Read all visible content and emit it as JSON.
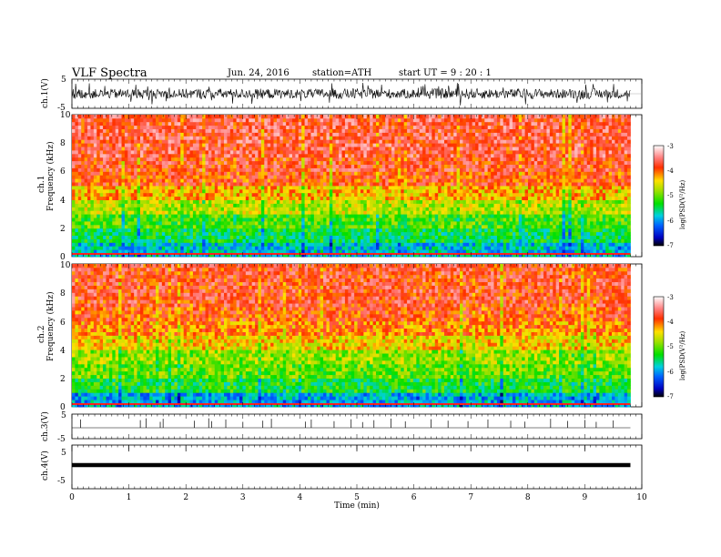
{
  "header": {
    "title": "VLF Spectra",
    "date": "Jun. 24, 2016",
    "station": "station=ATH",
    "start": "start  UT =   9  : 20 : 1"
  },
  "colors": {
    "spectrogram_low": "#0000cc",
    "spectrogram_high": "#ff2020",
    "colorbar_top": "#ffffff",
    "colorbar_bottom": "#000000"
  },
  "chart_data": [
    {
      "id": "ch1-waveform",
      "type": "line",
      "ylabel": "ch.1(V)",
      "ylim": [
        -5,
        5
      ],
      "yticks": [
        "5",
        "-5"
      ],
      "xlim": [
        0,
        10
      ],
      "x": [
        0,
        0.5,
        1,
        1.5,
        2,
        2.5,
        3,
        3.5,
        4,
        4.5,
        5,
        5.5,
        6,
        6.5,
        7,
        7.5,
        8,
        8.5,
        9,
        9.5,
        9.8
      ],
      "amplitude_envelope": [
        2.5,
        2.2,
        2.6,
        2.3,
        2.4,
        2.6,
        2.3,
        2.5,
        2.2,
        2.5,
        2.6,
        2.4,
        2.3,
        2.5,
        2.6,
        2.4,
        2.5,
        2.3,
        2.5,
        2.4,
        2.3
      ]
    },
    {
      "id": "ch1-spectrogram",
      "type": "heatmap",
      "ylabel_channel": "ch.1",
      "ylabel": "Frequency  (kHz)",
      "ylim": [
        0,
        10
      ],
      "yticks": [
        "0",
        "2",
        "4",
        "6",
        "8",
        "10"
      ],
      "xlim": [
        0,
        10
      ],
      "data_end_min": 9.8,
      "colorbar": {
        "label": "log(PSD(V²/Hz)",
        "range": [
          -7,
          -3
        ],
        "ticks": [
          "-3",
          "-4",
          "-5",
          "-6",
          "-7"
        ]
      },
      "freq_bands_khz": [
        0.5,
        1.5,
        2.5,
        3.5,
        4.5,
        5.5,
        6.5,
        7.5,
        8.5,
        9.5
      ],
      "band_mean_log_psd": [
        -5.8,
        -5.4,
        -5.1,
        -4.7,
        -4.3,
        -3.9,
        -3.8,
        -3.7,
        -3.7,
        -3.7
      ]
    },
    {
      "id": "ch2-spectrogram",
      "type": "heatmap",
      "ylabel_channel": "ch.2",
      "ylabel": "Frequency  (kHz)",
      "ylim": [
        0,
        10
      ],
      "yticks": [
        "0",
        "2",
        "4",
        "6",
        "8",
        "10"
      ],
      "xlim": [
        0,
        10
      ],
      "data_end_min": 9.8,
      "colorbar": {
        "label": "log(PSD(V²/Hz)",
        "range": [
          -7,
          -3
        ],
        "ticks": [
          "-3",
          "-4",
          "-5",
          "-6",
          "-7"
        ]
      },
      "freq_bands_khz": [
        0.5,
        1.5,
        2.5,
        3.5,
        4.5,
        5.5,
        6.5,
        7.5,
        8.5,
        9.5
      ],
      "band_mean_log_psd": [
        -5.9,
        -5.3,
        -5.0,
        -4.8,
        -4.4,
        -4.1,
        -3.9,
        -3.8,
        -3.8,
        -3.8
      ]
    },
    {
      "id": "ch3-waveform",
      "type": "line",
      "ylabel": "ch.3(V)",
      "ylim": [
        -5,
        5
      ],
      "yticks": [
        "5",
        "-5"
      ],
      "xlim": [
        0,
        10
      ],
      "baseline": 0,
      "spikes_x_min": [
        0.15,
        1.2,
        1.3,
        1.55,
        1.6,
        2.15,
        2.4,
        2.45,
        2.7,
        3.0,
        3.35,
        3.5,
        4.1,
        4.2,
        4.6,
        4.9,
        5.1,
        5.3,
        5.6,
        5.85,
        6.3,
        6.6,
        6.95,
        7.3,
        7.7,
        7.95,
        8.4,
        8.7,
        9.0,
        9.2,
        9.5
      ],
      "spikes_value": [
        3.5,
        3.2,
        4.0,
        2.5,
        3.8,
        3.0,
        4.0,
        2.8,
        3.5,
        2.5,
        3.0,
        3.8,
        2.6,
        3.5,
        2.8,
        3.6,
        2.4,
        3.2,
        3.9,
        2.7,
        3.6,
        3.0,
        2.8,
        3.5,
        3.0,
        2.6,
        3.8,
        2.9,
        3.3,
        2.5,
        3.1
      ]
    },
    {
      "id": "ch4-waveform",
      "type": "line",
      "ylabel": "ch.4(V)",
      "ylim": [
        -5,
        5
      ],
      "yticks": [
        "5",
        "-5"
      ],
      "xlim": [
        0,
        10
      ],
      "xlabel": "Time  (min)",
      "xticks": [
        "0",
        "1",
        "2",
        "3",
        "4",
        "5",
        "6",
        "7",
        "8",
        "9",
        "10"
      ],
      "x": [
        0,
        9.8
      ],
      "y": [
        0,
        0
      ],
      "marker_x_min": [
        0,
        1,
        2,
        3,
        4,
        5,
        6,
        7,
        8,
        9
      ]
    }
  ]
}
